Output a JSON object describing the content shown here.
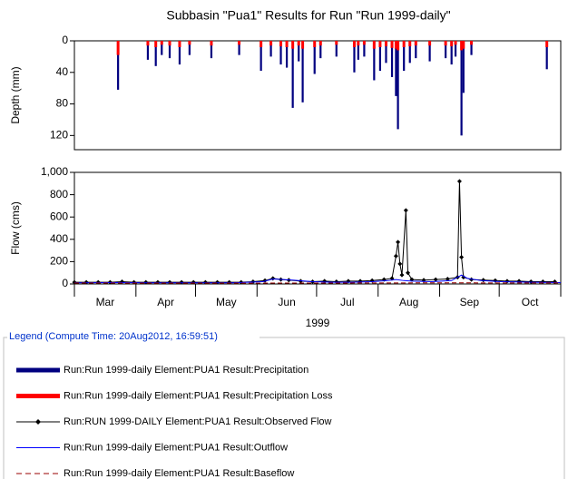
{
  "title": "Subbasin \"Pua1\" Results for Run \"Run 1999-daily\"",
  "chart_data": [
    {
      "type": "bar",
      "ylabel": "Depth (mm)",
      "y_inverted": true,
      "xlim": [
        0,
        245
      ],
      "xticks": [
        0,
        31,
        61,
        92,
        122,
        153,
        184,
        214,
        245
      ],
      "ylim": [
        0,
        138
      ],
      "yticks": [
        0,
        40,
        80,
        120
      ],
      "series": [
        {
          "name": "Run:Run 1999-daily Element:PUA1 Result:Precipitation",
          "color": "#000080",
          "x": [
            22,
            37,
            41,
            44,
            48,
            53,
            58,
            69,
            83,
            94,
            99,
            104,
            107,
            110,
            113,
            115,
            121,
            124,
            132,
            141,
            143,
            146,
            151,
            154,
            157,
            160,
            162,
            163,
            166,
            169,
            172,
            179,
            187,
            190,
            192,
            195,
            196,
            200,
            238
          ],
          "values": [
            62,
            24,
            32,
            18,
            22,
            30,
            18,
            22,
            18,
            38,
            20,
            30,
            34,
            85,
            26,
            78,
            42,
            22,
            20,
            40,
            24,
            20,
            50,
            38,
            28,
            46,
            70,
            112,
            38,
            28,
            22,
            26,
            22,
            30,
            20,
            120,
            66,
            18,
            36
          ]
        },
        {
          "name": "Run:Run 1999-daily Element:PUA1 Result:Precipitation Loss",
          "color": "#ff0000",
          "x": [
            22,
            37,
            41,
            44,
            48,
            53,
            58,
            69,
            83,
            94,
            99,
            104,
            107,
            110,
            113,
            115,
            121,
            124,
            132,
            141,
            143,
            146,
            151,
            154,
            157,
            160,
            162,
            163,
            166,
            169,
            172,
            179,
            187,
            190,
            192,
            195,
            196,
            200,
            238
          ],
          "values": [
            18,
            6,
            8,
            5,
            6,
            8,
            5,
            6,
            5,
            8,
            6,
            7,
            8,
            10,
            6,
            10,
            8,
            6,
            5,
            8,
            6,
            5,
            10,
            8,
            7,
            9,
            10,
            12,
            8,
            7,
            6,
            6,
            6,
            7,
            5,
            12,
            10,
            5,
            8
          ]
        }
      ]
    },
    {
      "type": "line",
      "ylabel": "Flow (cms)",
      "xlabel": "1999",
      "categories": [
        "Mar",
        "Apr",
        "May",
        "Jun",
        "Jul",
        "Aug",
        "Sep",
        "Oct"
      ],
      "xlim": [
        0,
        245
      ],
      "xticks": [
        0,
        31,
        61,
        92,
        122,
        153,
        184,
        214,
        245
      ],
      "ylim": [
        0,
        1000
      ],
      "yticks": [
        0,
        200,
        400,
        600,
        800,
        {
          "value": 1000,
          "label": "1,000"
        }
      ],
      "series": [
        {
          "name": "Run:RUN 1999-DAILY Element:PUA1 Result:Observed Flow",
          "color": "#000000",
          "marker": "diamond",
          "x": [
            0,
            6,
            12,
            18,
            24,
            30,
            36,
            42,
            48,
            54,
            60,
            66,
            72,
            78,
            84,
            90,
            96,
            100,
            104,
            108,
            114,
            120,
            126,
            132,
            138,
            144,
            150,
            156,
            160,
            162,
            163,
            164,
            165,
            167,
            168,
            170,
            176,
            182,
            188,
            193,
            194,
            195,
            196,
            200,
            206,
            212,
            218,
            224,
            230,
            236,
            242
          ],
          "values": [
            15,
            15,
            15,
            15,
            20,
            15,
            15,
            15,
            15,
            15,
            15,
            15,
            15,
            15,
            15,
            20,
            30,
            50,
            40,
            35,
            25,
            20,
            25,
            20,
            25,
            25,
            30,
            40,
            50,
            250,
            375,
            180,
            80,
            660,
            100,
            40,
            35,
            40,
            45,
            60,
            920,
            240,
            60,
            40,
            35,
            30,
            25,
            25,
            20,
            20,
            20
          ]
        },
        {
          "name": "Run:Run 1999-daily Element:PUA1 Result:Outflow",
          "color": "#0000ff",
          "x": [
            0,
            20,
            40,
            60,
            80,
            95,
            100,
            105,
            110,
            120,
            130,
            140,
            150,
            158,
            162,
            166,
            170,
            180,
            190,
            195,
            198,
            205,
            215,
            230,
            245
          ],
          "values": [
            10,
            12,
            10,
            10,
            10,
            20,
            45,
            40,
            35,
            20,
            15,
            15,
            20,
            30,
            40,
            30,
            25,
            20,
            30,
            80,
            50,
            30,
            20,
            15,
            12
          ]
        },
        {
          "name": "Run:Run 1999-daily Element:PUA1 Result:Baseflow",
          "color": "#990000",
          "dashed": true,
          "x": [
            0,
            60,
            120,
            180,
            245
          ],
          "values": [
            8,
            7,
            8,
            10,
            9
          ]
        }
      ]
    }
  ],
  "legend": {
    "title": "Legend (Compute Time: 20Aug2012, 16:59:51)"
  }
}
